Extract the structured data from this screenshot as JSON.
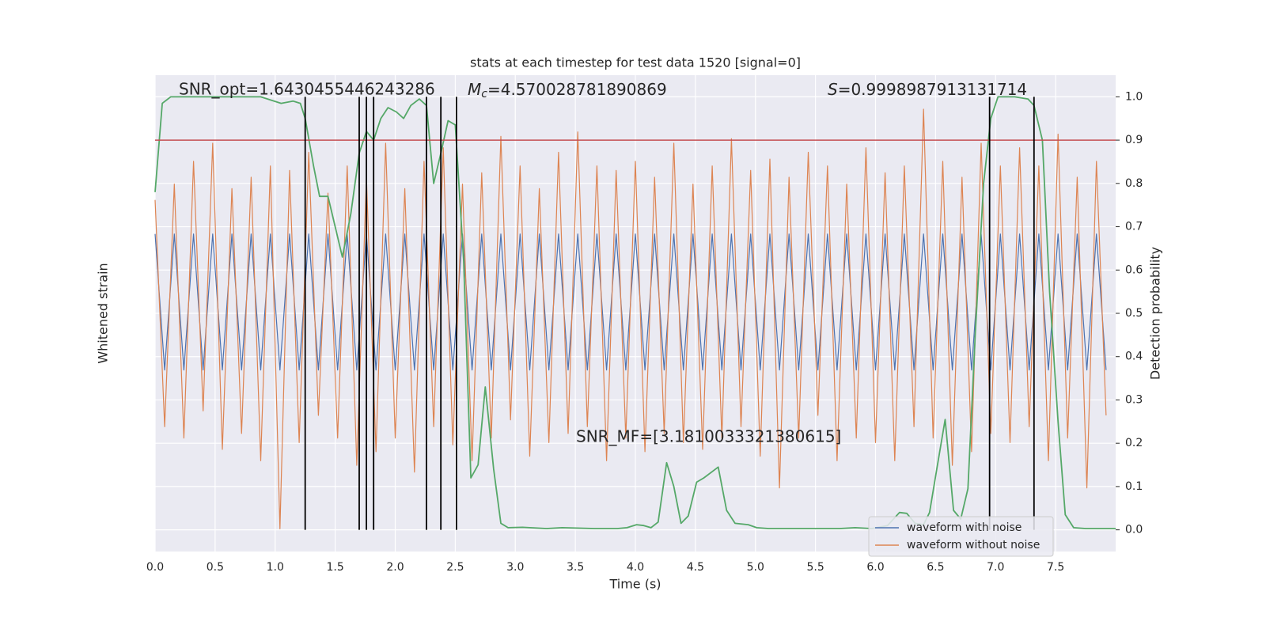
{
  "chart_data": {
    "type": "line",
    "title": "stats at each timestep for test data 1520 [signal=0]",
    "xlabel": "Time (s)",
    "ylabel": "Whitened strain",
    "y2label": "Detection probability",
    "annotations": {
      "snr_opt": "SNR_opt=1.6430455446243286",
      "mc": {
        "symbol": "M",
        "subscript": "c",
        "text": "=4.570028781890869"
      },
      "s": {
        "symbol": "S",
        "text": "=0.9998987913131714"
      },
      "snr_mf": "SNR_MF=[3.1810033321380615]"
    },
    "xlim": [
      0,
      8.0
    ],
    "xticks": [
      {
        "value": 0,
        "label": "0.0"
      },
      0.5,
      {
        "value": 1,
        "label": "1.0"
      },
      1.5,
      {
        "value": 2,
        "label": "2.0"
      },
      2.5,
      {
        "value": 3,
        "label": "3.0"
      },
      3.5,
      {
        "value": 4,
        "label": "4.0"
      },
      4.5,
      {
        "value": 5,
        "label": "5.0"
      },
      5.5,
      {
        "value": 6,
        "label": "6.0"
      },
      6.5,
      {
        "value": 7,
        "label": "7.0"
      },
      7.5
    ],
    "ylim": [
      -1.1,
      1.0
    ],
    "y2lim": [
      -0.05,
      1.05
    ],
    "y2ticks": [
      {
        "value": 0,
        "label": "0.0"
      },
      0.1,
      0.2,
      0.3,
      0.4,
      0.5,
      0.6,
      0.7,
      0.8,
      0.9,
      {
        "value": 1,
        "label": "1.0"
      }
    ],
    "grid": true,
    "legend": "lower right",
    "x": [
      0,
      0.08,
      0.16,
      0.24,
      0.32,
      0.4,
      0.48,
      0.56,
      0.64,
      0.72,
      0.8,
      0.88,
      0.96,
      1.04,
      1.12,
      1.2,
      1.28,
      1.36,
      1.44,
      1.52,
      1.6,
      1.68,
      1.76,
      1.84,
      1.92,
      2.0,
      2.08,
      2.16,
      2.24,
      2.32,
      2.4,
      2.48,
      2.56,
      2.64,
      2.72,
      2.8,
      2.88,
      2.96,
      3.04,
      3.12,
      3.2,
      3.28,
      3.36,
      3.44,
      3.52,
      3.6,
      3.68,
      3.76,
      3.84,
      3.92,
      4.0,
      4.08,
      4.16,
      4.24,
      4.32,
      4.4,
      4.48,
      4.56,
      4.64,
      4.72,
      4.8,
      4.88,
      4.96,
      5.04,
      5.12,
      5.2,
      5.28,
      5.36,
      5.44,
      5.52,
      5.6,
      5.68,
      5.76,
      5.84,
      5.92,
      6.0,
      6.08,
      6.16,
      6.24,
      6.32,
      6.4,
      6.48,
      6.56,
      6.64,
      6.72,
      6.8,
      6.88,
      6.96,
      7.04,
      7.12,
      7.2,
      7.28,
      7.36,
      7.44,
      7.52,
      7.6,
      7.68,
      7.76,
      7.84,
      7.92
    ],
    "series": [
      {
        "name": "waveform with noise",
        "color": "#4c72b0",
        "axis": "y",
        "values": [
          0.3,
          -0.3,
          0.3,
          -0.3,
          0.3,
          -0.3,
          0.3,
          -0.3,
          0.3,
          -0.3,
          0.3,
          -0.3,
          0.3,
          -0.3,
          0.3,
          -0.3,
          0.3,
          -0.3,
          0.3,
          -0.3,
          0.3,
          -0.3,
          0.3,
          -0.3,
          0.3,
          -0.3,
          0.3,
          -0.3,
          0.3,
          -0.3,
          0.3,
          -0.3,
          0.3,
          -0.3,
          0.3,
          -0.3,
          0.3,
          -0.3,
          0.3,
          -0.3,
          0.3,
          -0.3,
          0.3,
          -0.3,
          0.3,
          -0.3,
          0.3,
          -0.3,
          0.3,
          -0.3,
          0.3,
          -0.3,
          0.3,
          -0.3,
          0.3,
          -0.3,
          0.3,
          -0.3,
          0.3,
          -0.3,
          0.3,
          -0.3,
          0.3,
          -0.3,
          0.3,
          -0.3,
          0.3,
          -0.3,
          0.3,
          -0.3,
          0.3,
          -0.3,
          0.3,
          -0.3,
          0.3,
          -0.3,
          0.3,
          -0.3,
          0.3,
          -0.3,
          0.3,
          -0.3,
          0.3,
          -0.3,
          0.3,
          -0.3,
          0.3,
          -0.3,
          0.3,
          -0.3,
          0.3,
          -0.3,
          0.3,
          -0.3,
          0.3,
          -0.3,
          0.3,
          -0.3,
          0.3,
          -0.3
        ]
      },
      {
        "name": "waveform without noise",
        "color": "#dd8452",
        "axis": "y",
        "values": [
          0.45,
          -0.55,
          0.52,
          -0.6,
          0.62,
          -0.48,
          0.7,
          -0.65,
          0.5,
          -0.58,
          0.55,
          -0.7,
          0.6,
          -1.0,
          0.58,
          -0.62,
          0.66,
          -0.5,
          0.48,
          -0.6,
          0.6,
          -0.72,
          0.55,
          -0.66,
          0.7,
          -0.6,
          0.5,
          -0.75,
          0.62,
          -0.55,
          0.68,
          -0.63,
          0.52,
          -0.7,
          0.57,
          -0.6,
          0.73,
          -0.52,
          0.6,
          -0.68,
          0.5,
          -0.62,
          0.66,
          -0.58,
          0.75,
          -0.55,
          0.6,
          -0.7,
          0.58,
          -0.6,
          0.62,
          -0.66,
          0.55,
          -0.58,
          0.7,
          -0.62,
          0.52,
          -0.65,
          0.6,
          -0.6,
          0.72,
          -0.55,
          0.58,
          -0.68,
          0.63,
          -0.82,
          0.55,
          -0.6,
          0.66,
          -0.5,
          0.6,
          -0.7,
          0.52,
          -0.6,
          0.68,
          -0.62,
          0.57,
          -0.7,
          0.6,
          -0.55,
          0.85,
          -0.6,
          0.62,
          -0.72,
          0.55,
          -0.66,
          0.7,
          -0.58,
          0.6,
          -0.62,
          0.68,
          -0.55,
          0.6,
          -0.7,
          0.74,
          -0.6,
          0.55,
          -0.82,
          0.62,
          -0.5
        ]
      },
      {
        "name": "detection probability",
        "color": "#55a868",
        "axis": "y2",
        "legend": false,
        "x": [
          0,
          0.06,
          0.13,
          0.88,
          1.05,
          1.15,
          1.21,
          1.25,
          1.32,
          1.37,
          1.44,
          1.5,
          1.56,
          1.63,
          1.7,
          1.76,
          1.82,
          1.88,
          1.94,
          2.01,
          2.07,
          2.13,
          2.2,
          2.26,
          2.32,
          2.38,
          2.44,
          2.5,
          2.57,
          2.63,
          2.69,
          2.75,
          2.82,
          2.88,
          2.94,
          3.06,
          3.26,
          3.39,
          3.66,
          3.85,
          3.93,
          4.01,
          4.07,
          4.13,
          4.19,
          4.26,
          4.32,
          4.38,
          4.44,
          4.51,
          4.57,
          4.69,
          4.76,
          4.83,
          4.94,
          5.01,
          5.11,
          5.7,
          5.83,
          5.97,
          6.1,
          6.2,
          6.26,
          6.33,
          6.4,
          6.45,
          6.51,
          6.58,
          6.65,
          6.71,
          6.77,
          6.83,
          6.9,
          6.96,
          7.02,
          7.16,
          7.27,
          7.32,
          7.39,
          7.45,
          7.52,
          7.58,
          7.65,
          7.75,
          8.0
        ],
        "values": [
          0.78,
          0.985,
          1.0,
          1.0,
          0.985,
          0.99,
          0.985,
          0.95,
          0.84,
          0.77,
          0.77,
          0.7,
          0.63,
          0.73,
          0.87,
          0.92,
          0.9,
          0.95,
          0.975,
          0.965,
          0.95,
          0.98,
          0.995,
          0.98,
          0.8,
          0.87,
          0.945,
          0.935,
          0.62,
          0.12,
          0.15,
          0.33,
          0.14,
          0.015,
          0.005,
          0.006,
          0.003,
          0.005,
          0.003,
          0.003,
          0.005,
          0.012,
          0.01,
          0.005,
          0.018,
          0.155,
          0.1,
          0.015,
          0.032,
          0.11,
          0.12,
          0.145,
          0.045,
          0.015,
          0.012,
          0.005,
          0.003,
          0.003,
          0.005,
          0.003,
          0.01,
          0.04,
          0.038,
          0.015,
          0.012,
          0.04,
          0.14,
          0.255,
          0.045,
          0.025,
          0.095,
          0.45,
          0.8,
          0.95,
          1.0,
          1.0,
          0.995,
          0.98,
          0.9,
          0.55,
          0.25,
          0.035,
          0.005,
          0.003,
          0.003
        ]
      }
    ],
    "hline": {
      "value": 0.9,
      "color": "#c44e52",
      "axis": "y2"
    },
    "vlines": {
      "x": [
        1.25,
        1.7,
        1.76,
        1.82,
        2.26,
        2.38,
        2.51,
        6.95,
        7.32
      ],
      "ymin": 0,
      "ymax": 1,
      "color": "#000000",
      "axis": "y2"
    }
  }
}
